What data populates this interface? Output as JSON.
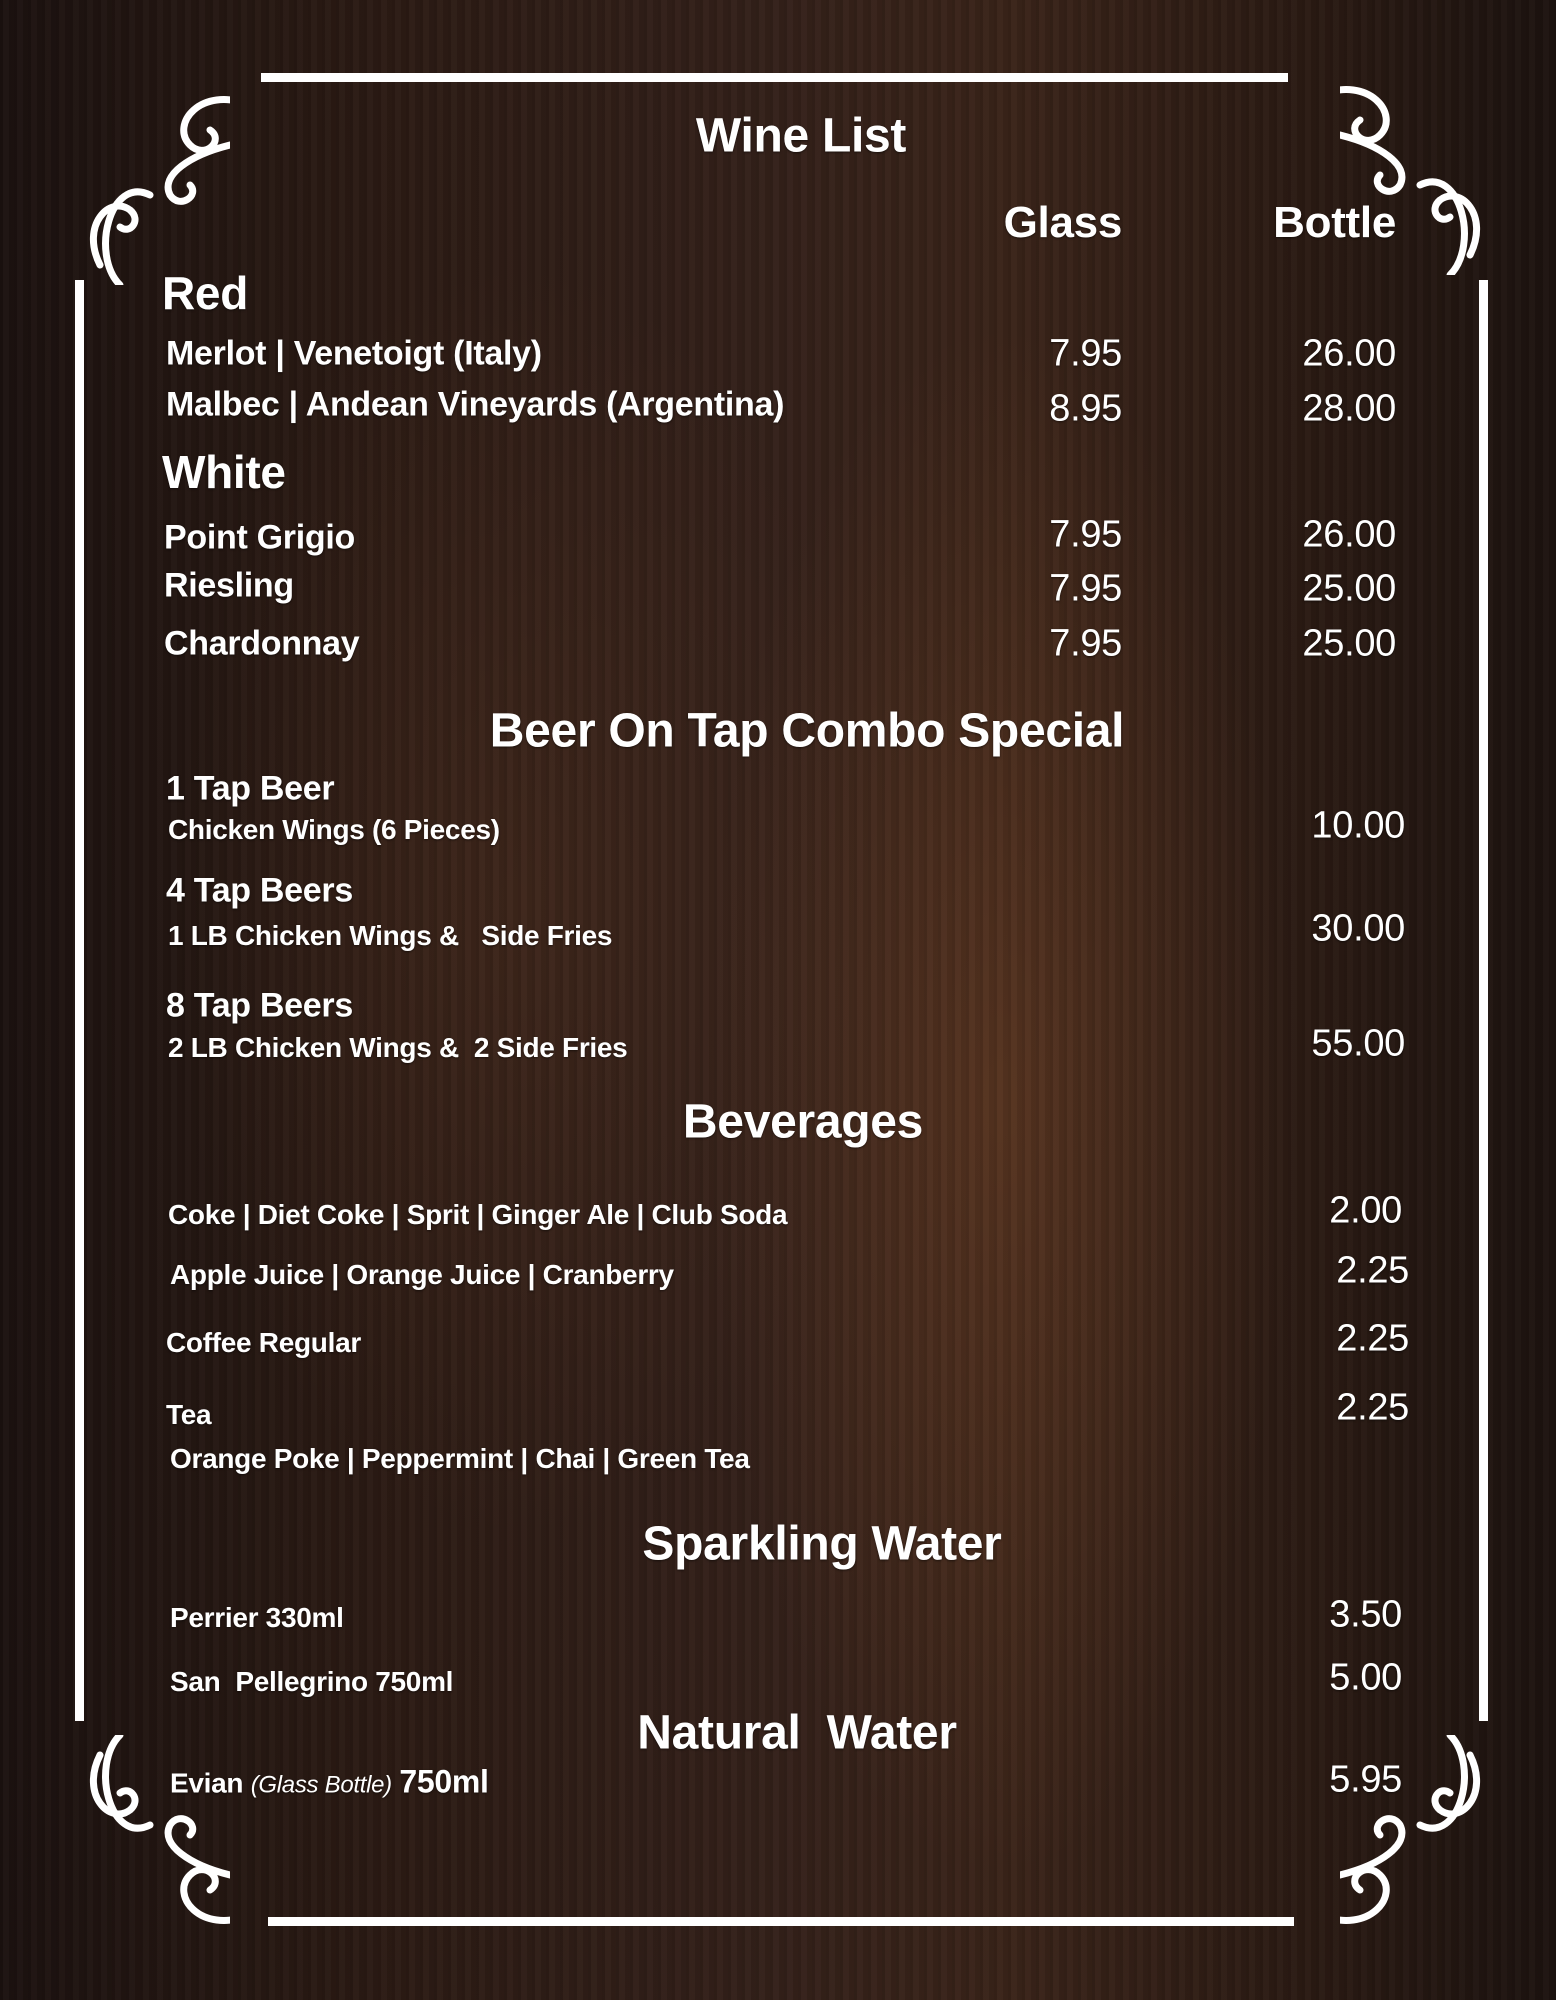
{
  "title": "Wine List",
  "columns": {
    "glass": "Glass",
    "bottle": "Bottle"
  },
  "wine": {
    "red": {
      "label": "Red",
      "items": [
        {
          "name": "Merlot |  Venetoigt (Italy)",
          "glass": "7.95",
          "bottle": "26.00"
        },
        {
          "name": "Malbec | Andean Vineyards (Argentina)",
          "glass": "8.95",
          "bottle": "28.00"
        }
      ]
    },
    "white": {
      "label": "White",
      "items": [
        {
          "name": "Point Grigio",
          "glass": "7.95",
          "bottle": "26.00"
        },
        {
          "name": "Riesling",
          "glass": "7.95",
          "bottle": "25.00"
        },
        {
          "name": "Chardonnay",
          "glass": "7.95",
          "bottle": "25.00"
        }
      ]
    }
  },
  "beer": {
    "title": "Beer On Tap Combo Special",
    "items": [
      {
        "name": "1 Tap Beer",
        "desc": "Chicken Wings (6 Pieces)",
        "price": "10.00"
      },
      {
        "name": "4 Tap Beers",
        "desc": "1 LB Chicken Wings &   Side Fries",
        "price": "30.00"
      },
      {
        "name": "8 Tap Beers",
        "desc": "2 LB Chicken Wings &  2 Side Fries",
        "price": "55.00"
      }
    ]
  },
  "beverages": {
    "title": "Beverages",
    "items": [
      {
        "name": "Coke | Diet Coke | Sprit | Ginger Ale | Club Soda",
        "price": "2.00"
      },
      {
        "name": "Apple Juice | Orange Juice | Cranberry",
        "price": "2.25"
      },
      {
        "name": "Coffee Regular",
        "price": "2.25"
      },
      {
        "name": "Tea",
        "desc": "Orange Poke | Peppermint | Chai | Green Tea",
        "price": "2.25"
      }
    ]
  },
  "sparkling": {
    "title": "Sparkling Water",
    "items": [
      {
        "name": "Perrier 330ml",
        "price": "3.50"
      },
      {
        "name": "San  Pellegrino 750ml",
        "price": "5.00"
      }
    ]
  },
  "natural": {
    "title": "Natural  Water",
    "items": [
      {
        "name": "Evian",
        "note": "(Glass Bottle)",
        "size": "750ml",
        "price": "5.95"
      }
    ]
  },
  "colors": {
    "background": "#2c1b14",
    "text": "#ffffff"
  }
}
